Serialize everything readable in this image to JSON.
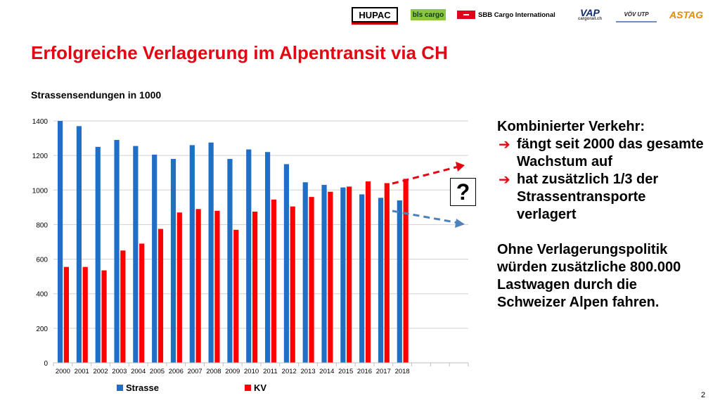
{
  "logos": {
    "hupac": "HUPAC",
    "bls": "bls cargo",
    "sbb": "SBB Cargo International",
    "vap": "VAP",
    "vap_sub": "cargorail.ch",
    "vov": "VÖV UTP",
    "astag": "ASTAG"
  },
  "slide": {
    "title": "Erfolgreiche Verlagerung im Alpentransit via CH",
    "question_mark": "?",
    "page_number": "2"
  },
  "textbox": {
    "heading": "Kombinierter Verkehr:",
    "bullets": [
      "fängt seit 2000 das gesamte Wachstum auf",
      "hat zusätzlich 1/3 der Strassentransporte verlagert"
    ],
    "paragraph": "Ohne Verlagerungspolitik würden zusätzliche 800.000 Lastwagen durch die Schweizer Alpen fahren."
  },
  "colors": {
    "title_red": "#e30613",
    "strasse_blue": "#1f6fc5",
    "kv_red": "#ff0000",
    "trend_red": "#e30613",
    "trend_blue": "#4f81bd"
  },
  "chart_data": {
    "type": "bar",
    "title": "Strassensendungen in 1000",
    "categories": [
      "2000",
      "2001",
      "2002",
      "2003",
      "2004",
      "2005",
      "2006",
      "2007",
      "2008",
      "2009",
      "2010",
      "2011",
      "2012",
      "2013",
      "2014",
      "2015",
      "2016",
      "2017",
      "2018",
      "",
      "",
      ""
    ],
    "series": [
      {
        "name": "Strasse",
        "values": [
          1400,
          1370,
          1250,
          1290,
          1255,
          1205,
          1180,
          1260,
          1275,
          1180,
          1235,
          1220,
          1150,
          1045,
          1030,
          1015,
          975,
          955,
          940,
          null,
          null,
          null
        ]
      },
      {
        "name": "KV",
        "values": [
          555,
          555,
          535,
          650,
          690,
          775,
          870,
          890,
          880,
          770,
          875,
          945,
          905,
          960,
          990,
          1020,
          1050,
          1040,
          1065,
          null,
          null,
          null
        ]
      }
    ],
    "ylim": [
      0,
      1400
    ],
    "yticks": [
      0,
      200,
      400,
      600,
      800,
      1000,
      1200,
      1400
    ],
    "grid": true,
    "legend": "bottom",
    "xlabel": "",
    "ylabel": ""
  }
}
